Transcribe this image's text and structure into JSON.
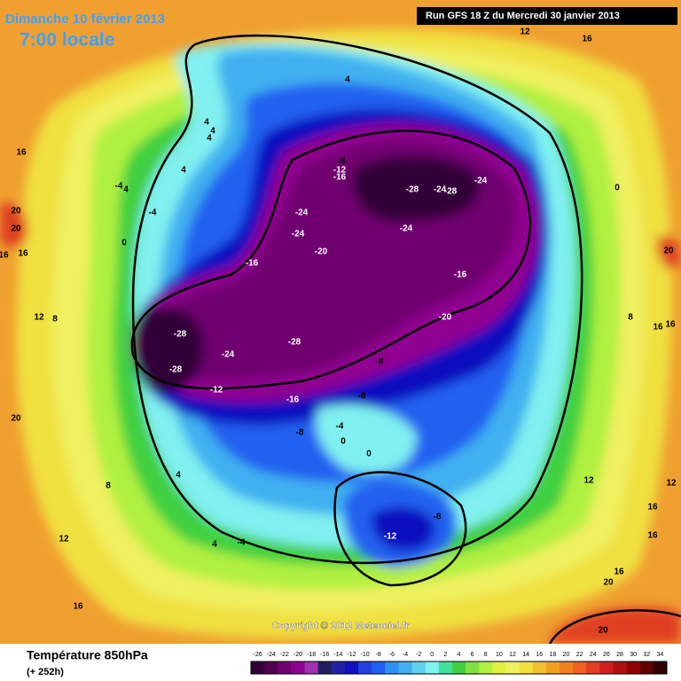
{
  "header": {
    "date": "Dimanche 10 février 2013",
    "time": "7:00 locale",
    "run": "Run GFS 18 Z du Mercredi 30 janvier 2013",
    "copyright": "Copyright © 2012 Meteociel.fr"
  },
  "footer": {
    "title": "Température 850hPa",
    "lead": "(+ 252h)"
  },
  "colorbar": {
    "ticks": [
      -26,
      -24,
      -22,
      -20,
      -18,
      -16,
      -14,
      -12,
      -10,
      -8,
      -6,
      -4,
      -2,
      0,
      2,
      4,
      6,
      8,
      10,
      12,
      14,
      16,
      18,
      20,
      22,
      24,
      26,
      28,
      30,
      32,
      34
    ],
    "colors": [
      "#300038",
      "#500050",
      "#700070",
      "#900090",
      "#a030b0",
      "#202060",
      "#2020a0",
      "#1010c0",
      "#2040e0",
      "#2060f0",
      "#3090f0",
      "#40b0f0",
      "#60d0f0",
      "#80f0f0",
      "#40e0a0",
      "#40d040",
      "#80e040",
      "#b0f040",
      "#e0f040",
      "#f0f060",
      "#f0e040",
      "#f0c030",
      "#f0a020",
      "#f08020",
      "#f06020",
      "#e04020",
      "#d02020",
      "#b01010",
      "#900000",
      "#600000",
      "#300000"
    ]
  },
  "contour_labels": [
    12,
    16,
    4,
    4,
    4,
    4,
    16,
    4,
    -4,
    4,
    -4,
    -8,
    -12,
    -16,
    -28,
    -24,
    -28,
    -24,
    0,
    20,
    20,
    -24,
    -24,
    -24,
    0,
    16,
    16,
    -20,
    -16,
    -16,
    20,
    12,
    8,
    -20,
    8,
    16,
    16,
    -28,
    -28,
    -24,
    -28,
    -8,
    -12,
    -16,
    -8,
    20,
    -4,
    -8,
    0,
    0,
    4,
    8,
    12,
    12,
    16,
    -8,
    -12,
    12,
    4,
    -4,
    16,
    16,
    20,
    16,
    20
  ]
}
